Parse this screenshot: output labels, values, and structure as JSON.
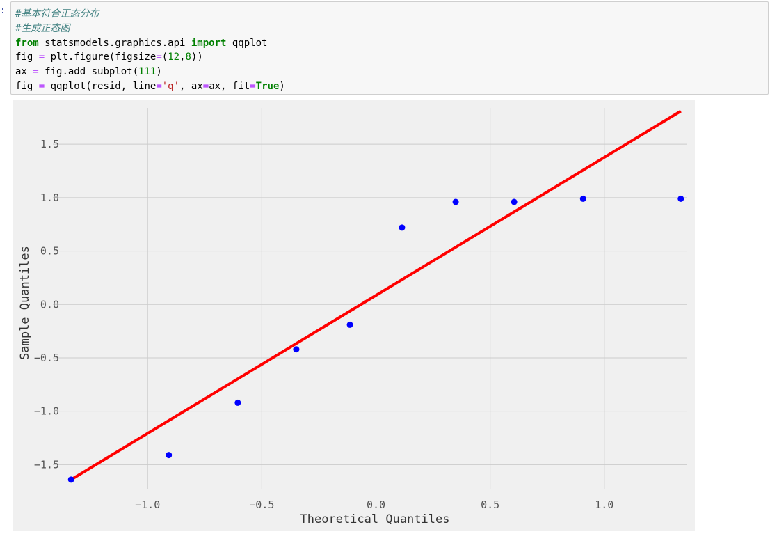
{
  "cell": {
    "prompt": ":",
    "lines": [
      [
        {
          "t": "#基本符合正态分布",
          "c": "comment"
        }
      ],
      [
        {
          "t": "#生成正态图",
          "c": "comment"
        }
      ],
      [
        {
          "t": "from",
          "c": "kw"
        },
        {
          "t": " statsmodels.graphics.api ",
          "c": ""
        },
        {
          "t": "import",
          "c": "kw"
        },
        {
          "t": " qqplot",
          "c": ""
        }
      ],
      [
        {
          "t": "fig ",
          "c": ""
        },
        {
          "t": "=",
          "c": "op"
        },
        {
          "t": " plt.figure(figsize",
          "c": ""
        },
        {
          "t": "=",
          "c": "op"
        },
        {
          "t": "(",
          "c": ""
        },
        {
          "t": "12",
          "c": "num"
        },
        {
          "t": ",",
          "c": ""
        },
        {
          "t": "8",
          "c": "num"
        },
        {
          "t": "))",
          "c": ""
        }
      ],
      [
        {
          "t": "ax ",
          "c": ""
        },
        {
          "t": "=",
          "c": "op"
        },
        {
          "t": " fig.add_subplot(",
          "c": ""
        },
        {
          "t": "111",
          "c": "num"
        },
        {
          "t": ")",
          "c": ""
        }
      ],
      [
        {
          "t": "fig ",
          "c": ""
        },
        {
          "t": "=",
          "c": "op"
        },
        {
          "t": " qqplot(resid, line",
          "c": ""
        },
        {
          "t": "=",
          "c": "op"
        },
        {
          "t": "'q'",
          "c": "str"
        },
        {
          "t": ", ax",
          "c": ""
        },
        {
          "t": "=",
          "c": "op"
        },
        {
          "t": "ax, fit",
          "c": ""
        },
        {
          "t": "=",
          "c": "op"
        },
        {
          "t": "True",
          "c": "kw"
        },
        {
          "t": ")",
          "c": ""
        }
      ]
    ]
  },
  "chart_data": {
    "type": "scatter",
    "title": "",
    "xlabel": "Theoretical Quantiles",
    "ylabel": "Sample Quantiles",
    "xlim": [
      -1.36,
      1.36
    ],
    "ylim": [
      -1.68,
      1.84
    ],
    "grid": true,
    "xticks": [
      -1.0,
      -0.5,
      0.0,
      0.5,
      1.0
    ],
    "xtick_labels": [
      "−1.0",
      "−0.5",
      "0.0",
      "0.5",
      "1.0"
    ],
    "yticks": [
      1.5,
      1.0,
      0.5,
      0.0,
      -0.5,
      -1.0,
      -1.5
    ],
    "ytick_labels": [
      "1.5",
      "1.0",
      "0.5",
      "0.0",
      "−0.5",
      "−1.0",
      "−1.5"
    ],
    "points": {
      "x": [
        -1.335,
        -0.907,
        -0.605,
        -0.349,
        -0.114,
        0.114,
        0.349,
        0.605,
        0.907,
        1.335
      ],
      "y": [
        -1.64,
        -1.41,
        -0.92,
        -0.42,
        -0.19,
        0.72,
        0.96,
        0.96,
        0.99,
        0.99
      ],
      "color": "#0000ff"
    },
    "fit_line": {
      "x": [
        -1.335,
        1.335
      ],
      "y": [
        -1.64,
        1.81
      ],
      "color": "#ff0000"
    },
    "colors": {
      "background": "#f0f0f0",
      "grid": "#cbcbcb",
      "tick_text": "#555555"
    }
  }
}
